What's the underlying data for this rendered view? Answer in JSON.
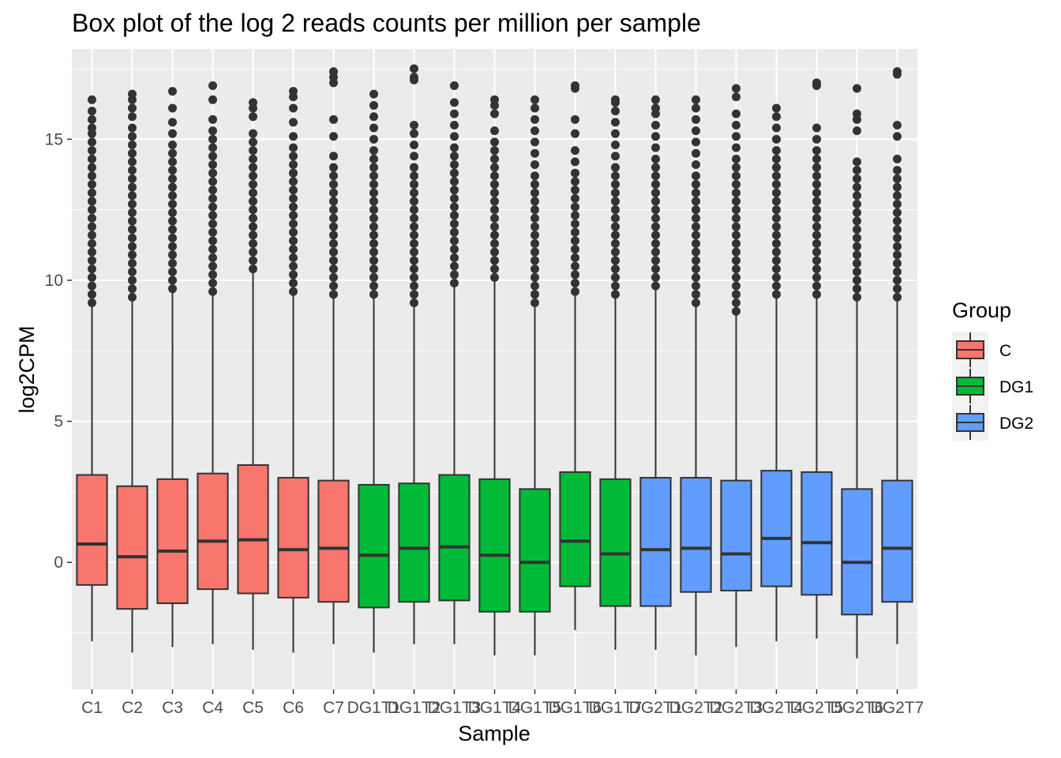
{
  "chart_data": {
    "type": "boxplot",
    "title": "Box plot of the log 2 reads counts per million per sample",
    "xlabel": "Sample",
    "ylabel": "log2CPM",
    "ylim": [
      -4.5,
      18.2
    ],
    "yticks": [
      0,
      5,
      10,
      15
    ],
    "grid": true,
    "legend": {
      "title": "Group",
      "position": "right",
      "entries": [
        {
          "label": "C",
          "color": "#F8766D"
        },
        {
          "label": "DG1",
          "color": "#00BA38"
        },
        {
          "label": "DG2",
          "color": "#619CFF"
        }
      ]
    },
    "colors": {
      "C": "#F8766D",
      "DG1": "#00BA38",
      "DG2": "#619CFF",
      "panel": "#EBEBEB",
      "grid": "#FFFFFF",
      "outline": "#333333"
    },
    "categories": [
      "C1",
      "C2",
      "C3",
      "C4",
      "C5",
      "C6",
      "C7",
      "DG1T1",
      "DG1T2",
      "DG1T3",
      "DG1T4",
      "DG1T5",
      "DG1T6",
      "DG1T7",
      "DG2T1",
      "DG2T2",
      "DG2T3",
      "DG2T4",
      "DG2T5",
      "DG2T6",
      "DG2T7"
    ],
    "series": [
      {
        "sample": "C1",
        "group": "C",
        "lower_whisker": -2.8,
        "q1": -0.8,
        "median": 0.65,
        "q3": 3.1,
        "upper_whisker": 9.1,
        "outliers": [
          9.2,
          9.5,
          9.8,
          10.1,
          10.4,
          10.7,
          11.0,
          11.3,
          11.6,
          11.9,
          12.2,
          12.5,
          12.8,
          13.1,
          13.4,
          13.7,
          14.0,
          14.3,
          14.6,
          14.9,
          15.2,
          15.4,
          15.7,
          16.0,
          16.4
        ]
      },
      {
        "sample": "C2",
        "group": "C",
        "lower_whisker": -3.2,
        "q1": -1.65,
        "median": 0.2,
        "q3": 2.7,
        "upper_whisker": 9.3,
        "outliers": [
          9.4,
          9.7,
          10.0,
          10.3,
          10.6,
          10.9,
          11.2,
          11.5,
          11.8,
          12.1,
          12.4,
          12.7,
          13.0,
          13.3,
          13.6,
          13.9,
          14.2,
          14.5,
          14.8,
          15.1,
          15.4,
          15.8,
          16.1,
          16.4,
          16.6
        ]
      },
      {
        "sample": "C3",
        "group": "C",
        "lower_whisker": -3.0,
        "q1": -1.45,
        "median": 0.4,
        "q3": 2.95,
        "upper_whisker": 9.6,
        "outliers": [
          9.7,
          10.0,
          10.3,
          10.6,
          10.9,
          11.2,
          11.5,
          11.8,
          12.1,
          12.4,
          12.7,
          13.0,
          13.3,
          13.6,
          13.9,
          14.2,
          14.5,
          14.8,
          15.2,
          15.6,
          16.1,
          16.7
        ]
      },
      {
        "sample": "C4",
        "group": "C",
        "lower_whisker": -2.9,
        "q1": -0.95,
        "median": 0.75,
        "q3": 3.15,
        "upper_whisker": 9.5,
        "outliers": [
          9.6,
          9.9,
          10.2,
          10.5,
          10.8,
          11.1,
          11.4,
          11.7,
          12.0,
          12.3,
          12.6,
          12.9,
          13.2,
          13.5,
          13.8,
          14.1,
          14.4,
          14.7,
          15.0,
          15.3,
          15.7,
          16.4,
          16.9
        ]
      },
      {
        "sample": "C5",
        "group": "C",
        "lower_whisker": -3.1,
        "q1": -1.1,
        "median": 0.8,
        "q3": 3.45,
        "upper_whisker": 10.3,
        "outliers": [
          10.4,
          10.7,
          11.0,
          11.3,
          11.6,
          11.9,
          12.2,
          12.5,
          12.8,
          13.1,
          13.4,
          13.7,
          14.0,
          14.3,
          14.6,
          14.9,
          15.2,
          15.8,
          16.1,
          16.3
        ]
      },
      {
        "sample": "C6",
        "group": "C",
        "lower_whisker": -3.2,
        "q1": -1.25,
        "median": 0.45,
        "q3": 3.0,
        "upper_whisker": 9.5,
        "outliers": [
          9.6,
          9.9,
          10.2,
          10.5,
          10.8,
          11.1,
          11.4,
          11.7,
          12.0,
          12.3,
          12.6,
          12.9,
          13.2,
          13.5,
          13.8,
          14.1,
          14.4,
          14.7,
          15.1,
          15.6,
          16.1,
          16.5,
          16.7
        ]
      },
      {
        "sample": "C7",
        "group": "C",
        "lower_whisker": -2.9,
        "q1": -1.4,
        "median": 0.5,
        "q3": 2.9,
        "upper_whisker": 9.4,
        "outliers": [
          9.5,
          9.8,
          10.1,
          10.4,
          10.7,
          11.0,
          11.3,
          11.6,
          11.9,
          12.2,
          12.5,
          12.8,
          13.1,
          13.4,
          13.7,
          14.0,
          14.4,
          15.1,
          15.7,
          17.0,
          17.2,
          17.4
        ]
      },
      {
        "sample": "DG1T1",
        "group": "DG1",
        "lower_whisker": -3.2,
        "q1": -1.6,
        "median": 0.25,
        "q3": 2.75,
        "upper_whisker": 9.4,
        "outliers": [
          9.5,
          9.8,
          10.1,
          10.4,
          10.7,
          11.0,
          11.3,
          11.6,
          11.9,
          12.2,
          12.5,
          12.8,
          13.1,
          13.4,
          13.7,
          14.0,
          14.3,
          14.6,
          15.0,
          15.4,
          15.8,
          16.2,
          16.6
        ]
      },
      {
        "sample": "DG1T2",
        "group": "DG1",
        "lower_whisker": -2.9,
        "q1": -1.4,
        "median": 0.5,
        "q3": 2.8,
        "upper_whisker": 9.1,
        "outliers": [
          9.2,
          9.5,
          9.8,
          10.1,
          10.4,
          10.7,
          11.0,
          11.3,
          11.6,
          11.9,
          12.2,
          12.5,
          12.8,
          13.1,
          13.4,
          13.7,
          14.0,
          14.4,
          14.8,
          15.2,
          15.5,
          17.1,
          17.2,
          17.5
        ]
      },
      {
        "sample": "DG1T3",
        "group": "DG1",
        "lower_whisker": -2.9,
        "q1": -1.35,
        "median": 0.55,
        "q3": 3.1,
        "upper_whisker": 9.8,
        "outliers": [
          9.9,
          10.2,
          10.5,
          10.8,
          11.1,
          11.4,
          11.7,
          12.0,
          12.3,
          12.6,
          12.9,
          13.2,
          13.5,
          13.8,
          14.1,
          14.4,
          14.7,
          15.1,
          15.5,
          15.9,
          16.3,
          16.9
        ]
      },
      {
        "sample": "DG1T4",
        "group": "DG1",
        "lower_whisker": -3.3,
        "q1": -1.75,
        "median": 0.25,
        "q3": 2.95,
        "upper_whisker": 10.0,
        "outliers": [
          10.1,
          10.4,
          10.7,
          11.0,
          11.3,
          11.6,
          11.9,
          12.2,
          12.5,
          12.8,
          13.1,
          13.4,
          13.7,
          14.0,
          14.3,
          14.6,
          14.9,
          15.3,
          15.9,
          16.2,
          16.4
        ]
      },
      {
        "sample": "DG1T5",
        "group": "DG1",
        "lower_whisker": -3.3,
        "q1": -1.75,
        "median": 0.0,
        "q3": 2.6,
        "upper_whisker": 9.1,
        "outliers": [
          9.2,
          9.5,
          9.8,
          10.1,
          10.4,
          10.7,
          11.0,
          11.3,
          11.6,
          11.9,
          12.2,
          12.5,
          12.8,
          13.1,
          13.4,
          13.7,
          14.1,
          14.5,
          14.9,
          15.3,
          15.7,
          16.1,
          16.4
        ]
      },
      {
        "sample": "DG1T6",
        "group": "DG1",
        "lower_whisker": -2.4,
        "q1": -0.85,
        "median": 0.75,
        "q3": 3.2,
        "upper_whisker": 9.5,
        "outliers": [
          9.6,
          9.9,
          10.2,
          10.5,
          10.8,
          11.1,
          11.4,
          11.7,
          12.0,
          12.3,
          12.6,
          12.9,
          13.2,
          13.5,
          13.8,
          14.2,
          14.6,
          15.2,
          15.7,
          16.8,
          16.9
        ]
      },
      {
        "sample": "DG1T7",
        "group": "DG1",
        "lower_whisker": -3.1,
        "q1": -1.55,
        "median": 0.3,
        "q3": 2.95,
        "upper_whisker": 9.4,
        "outliers": [
          9.5,
          9.8,
          10.1,
          10.4,
          10.7,
          11.0,
          11.3,
          11.6,
          11.9,
          12.2,
          12.5,
          12.8,
          13.1,
          13.4,
          13.7,
          14.0,
          14.4,
          14.8,
          15.2,
          15.6,
          16.0,
          16.3,
          16.4
        ]
      },
      {
        "sample": "DG2T1",
        "group": "DG2",
        "lower_whisker": -3.1,
        "q1": -1.55,
        "median": 0.45,
        "q3": 3.0,
        "upper_whisker": 9.7,
        "outliers": [
          9.8,
          10.1,
          10.4,
          10.7,
          11.0,
          11.3,
          11.6,
          11.9,
          12.2,
          12.5,
          12.8,
          13.1,
          13.4,
          13.7,
          14.0,
          14.3,
          14.7,
          15.1,
          15.5,
          15.9,
          16.1,
          16.4
        ]
      },
      {
        "sample": "DG2T2",
        "group": "DG2",
        "lower_whisker": -3.3,
        "q1": -1.05,
        "median": 0.5,
        "q3": 3.0,
        "upper_whisker": 9.1,
        "outliers": [
          9.2,
          9.5,
          9.8,
          10.1,
          10.4,
          10.7,
          11.0,
          11.3,
          11.6,
          11.9,
          12.2,
          12.5,
          12.8,
          13.1,
          13.4,
          13.7,
          14.1,
          14.5,
          14.9,
          15.3,
          15.7,
          16.1,
          16.4
        ]
      },
      {
        "sample": "DG2T3",
        "group": "DG2",
        "lower_whisker": -3.0,
        "q1": -1.0,
        "median": 0.3,
        "q3": 2.9,
        "upper_whisker": 8.8,
        "outliers": [
          8.9,
          9.2,
          9.5,
          9.8,
          10.1,
          10.4,
          10.7,
          11.0,
          11.3,
          11.6,
          11.9,
          12.2,
          12.5,
          12.8,
          13.1,
          13.4,
          13.7,
          14.0,
          14.3,
          14.7,
          15.1,
          15.5,
          15.9,
          16.5,
          16.8
        ]
      },
      {
        "sample": "DG2T4",
        "group": "DG2",
        "lower_whisker": -2.8,
        "q1": -0.85,
        "median": 0.85,
        "q3": 3.25,
        "upper_whisker": 9.4,
        "outliers": [
          9.5,
          9.8,
          10.1,
          10.4,
          10.7,
          11.0,
          11.3,
          11.6,
          11.9,
          12.2,
          12.5,
          12.8,
          13.1,
          13.4,
          13.7,
          14.0,
          14.3,
          14.6,
          15.0,
          15.4,
          15.8,
          16.1
        ]
      },
      {
        "sample": "DG2T5",
        "group": "DG2",
        "lower_whisker": -2.7,
        "q1": -1.15,
        "median": 0.7,
        "q3": 3.2,
        "upper_whisker": 9.4,
        "outliers": [
          9.5,
          9.8,
          10.1,
          10.4,
          10.7,
          11.0,
          11.3,
          11.6,
          11.9,
          12.2,
          12.5,
          12.8,
          13.1,
          13.4,
          13.7,
          14.0,
          14.3,
          14.6,
          15.0,
          15.4,
          16.9,
          17.0
        ]
      },
      {
        "sample": "DG2T6",
        "group": "DG2",
        "lower_whisker": -3.4,
        "q1": -1.85,
        "median": 0.0,
        "q3": 2.6,
        "upper_whisker": 9.3,
        "outliers": [
          9.4,
          9.7,
          10.0,
          10.3,
          10.6,
          10.9,
          11.2,
          11.5,
          11.8,
          12.1,
          12.4,
          12.7,
          13.0,
          13.3,
          13.6,
          13.9,
          14.2,
          15.3,
          15.7,
          15.9,
          16.8
        ]
      },
      {
        "sample": "DG2T7",
        "group": "DG2",
        "lower_whisker": -2.9,
        "q1": -1.4,
        "median": 0.5,
        "q3": 2.9,
        "upper_whisker": 9.3,
        "outliers": [
          9.4,
          9.7,
          10.0,
          10.3,
          10.6,
          10.9,
          11.2,
          11.5,
          11.8,
          12.1,
          12.4,
          12.7,
          13.0,
          13.3,
          13.6,
          13.9,
          14.3,
          15.1,
          15.5,
          17.3,
          17.4
        ]
      }
    ]
  }
}
